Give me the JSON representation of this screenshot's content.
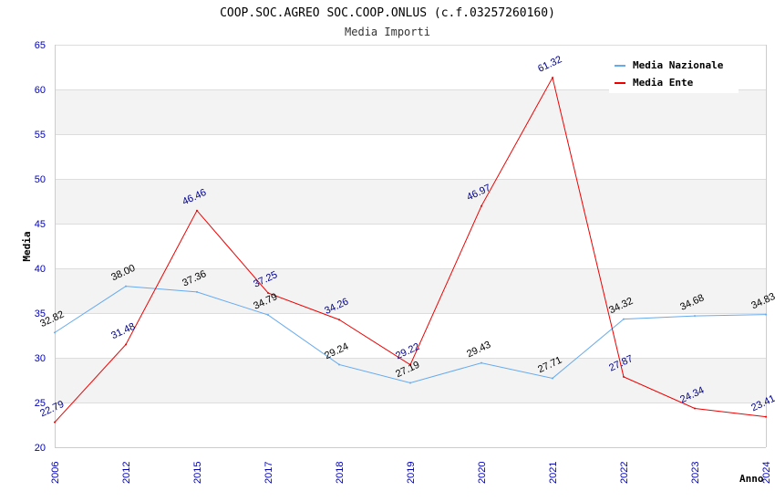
{
  "chart_data": {
    "type": "line",
    "title": "COOP.SOC.AGREO SOC.COOP.ONLUS (c.f.03257260160)",
    "subtitle": "Media Importi",
    "xlabel": "Anno",
    "ylabel": "Media",
    "ylim": [
      20,
      65
    ],
    "yticks": [
      "20",
      "25",
      "30",
      "35",
      "40",
      "45",
      "50",
      "55",
      "60",
      "65"
    ],
    "categories": [
      "2006",
      "2012",
      "2015",
      "2017",
      "2018",
      "2019",
      "2020",
      "2021",
      "2022",
      "2023",
      "2024"
    ],
    "grid": true,
    "legend_position": "top-right",
    "series": [
      {
        "name": "Media Nazionale",
        "color": "#66aaee",
        "label_color": "#000000",
        "values": [
          32.82,
          38.0,
          37.36,
          34.79,
          29.24,
          27.19,
          29.43,
          27.71,
          34.32,
          34.68,
          34.83
        ],
        "labels": [
          "32.82",
          "38.00",
          "37.36",
          "34.79",
          "29.24",
          "27.19",
          "29.43",
          "27.71",
          "34.32",
          "34.68",
          "34.83"
        ]
      },
      {
        "name": "Media Ente",
        "color": "#ee0000",
        "label_color": "#00008b",
        "values": [
          22.79,
          31.48,
          46.46,
          37.25,
          34.26,
          29.22,
          46.97,
          61.32,
          27.87,
          24.34,
          23.41
        ],
        "labels": [
          "22.79",
          "31.48",
          "46.46",
          "37.25",
          "34.26",
          "29.22",
          "46.97",
          "61.32",
          "27.87",
          "24.34",
          "23.41"
        ]
      }
    ]
  }
}
